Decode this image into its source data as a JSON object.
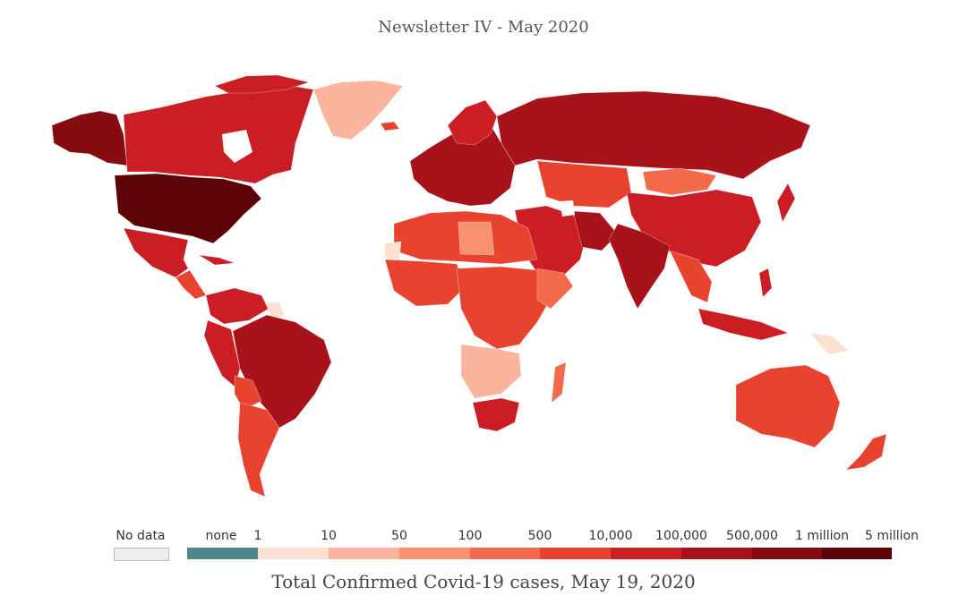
{
  "title": "Newsletter IV - May 2020",
  "caption": "Total Confirmed Covid-19 cases, May 19, 2020",
  "legend": {
    "nodata_label": "No data",
    "none_label": "none",
    "breaks": [
      "1",
      "10",
      "50",
      "100",
      "500",
      "10,000",
      "100,000",
      "500,000",
      "1 million",
      "5 million"
    ]
  },
  "colors": {
    "nodata": "#eeeeee",
    "none": "#4f878d",
    "c1": "#fde0d2",
    "c2": "#fbb59f",
    "c3": "#f9906f",
    "c4": "#f46a4b",
    "c5": "#e8432f",
    "c6": "#cb1d24",
    "c7": "#a81319",
    "c8": "#860c12",
    "c9": "#5c0308"
  }
}
